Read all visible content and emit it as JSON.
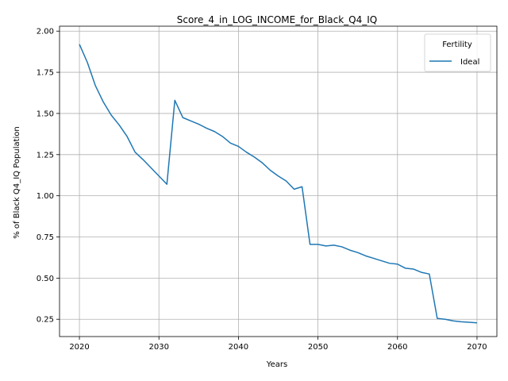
{
  "chart_data": {
    "type": "line",
    "title": "Score_4_in_LOG_INCOME_for_Black_Q4_IQ",
    "xlabel": "Years",
    "ylabel": "% of Black Q4_IQ Population",
    "xlim": [
      2017.5,
      2072.5
    ],
    "ylim": [
      0.145,
      2.03
    ],
    "xticks": [
      2020,
      2030,
      2040,
      2050,
      2060,
      2070
    ],
    "yticks": [
      0.25,
      0.5,
      0.75,
      1.0,
      1.25,
      1.5,
      1.75,
      2.0
    ],
    "ytick_labels": [
      "0.25",
      "0.50",
      "0.75",
      "1.00",
      "1.25",
      "1.50",
      "1.75",
      "2.00"
    ],
    "grid": true,
    "legend": {
      "title": "Fertility",
      "placement": "top-right"
    },
    "series": [
      {
        "name": "Ideal",
        "color": "#1f77b4",
        "x": [
          2020,
          2021,
          2022,
          2023,
          2024,
          2025,
          2026,
          2027,
          2028,
          2029,
          2030,
          2031,
          2032,
          2033,
          2034,
          2035,
          2036,
          2037,
          2038,
          2039,
          2040,
          2041,
          2042,
          2043,
          2044,
          2045,
          2046,
          2047,
          2048,
          2049,
          2050,
          2051,
          2052,
          2053,
          2054,
          2055,
          2056,
          2057,
          2058,
          2059,
          2060,
          2061,
          2062,
          2063,
          2064,
          2065,
          2066,
          2067,
          2068,
          2069,
          2070
        ],
        "y": [
          1.92,
          1.81,
          1.67,
          1.57,
          1.49,
          1.43,
          1.36,
          1.265,
          1.22,
          1.17,
          1.12,
          1.07,
          1.58,
          1.475,
          1.455,
          1.435,
          1.41,
          1.39,
          1.36,
          1.32,
          1.3,
          1.265,
          1.235,
          1.2,
          1.155,
          1.12,
          1.09,
          1.04,
          1.055,
          0.705,
          0.705,
          0.695,
          0.7,
          0.69,
          0.67,
          0.655,
          0.635,
          0.62,
          0.605,
          0.59,
          0.585,
          0.56,
          0.555,
          0.535,
          0.525,
          0.255,
          0.25,
          0.24,
          0.235,
          0.232,
          0.228
        ]
      }
    ]
  }
}
